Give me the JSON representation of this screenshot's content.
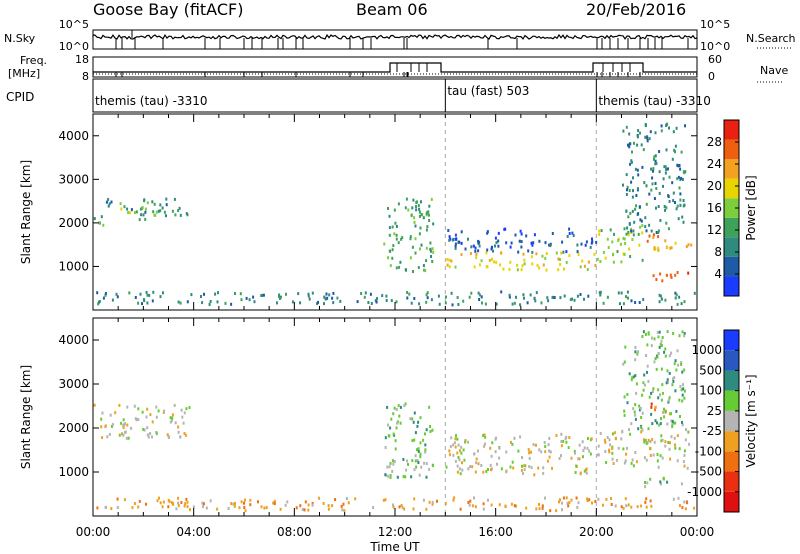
{
  "header": {
    "station": "Goose Bay (fitACF)",
    "beam": "Beam 06",
    "date": "20/Feb/2016"
  },
  "noise_panel": {
    "left_label": "N.Sky",
    "right_label": "N.Search",
    "left_ticks": [
      "10^5",
      "10^0"
    ],
    "right_ticks": [
      "10^5",
      "10^0"
    ]
  },
  "freq_panel": {
    "left_label_1": "Freq.",
    "left_label_2": "[MHz]",
    "right_label": "Nave",
    "left_ticks": [
      "18",
      "8"
    ],
    "right_ticks": [
      "60",
      "0"
    ]
  },
  "cpid_panel": {
    "label": "CPID",
    "segments": [
      {
        "text": "themis (tau) -3310",
        "start_h": 0,
        "end_h": 14
      },
      {
        "text": "tau (fast) 503",
        "start_h": 14,
        "end_h": 20
      },
      {
        "text": "themis (tau) -3310",
        "start_h": 20,
        "end_h": 24
      }
    ]
  },
  "chart_data": [
    {
      "type": "heatmap",
      "name": "power",
      "xlabel": "",
      "ylabel": "Slant Range [km]",
      "xlim": [
        0,
        24
      ],
      "ylim": [
        0,
        4500
      ],
      "yticks": [
        1000,
        2000,
        3000,
        4000
      ],
      "colorbar_label": "Power [dB]",
      "colorbar_ticks": [
        "4",
        "8",
        "12",
        "16",
        "20",
        "24",
        "28"
      ],
      "colors": [
        "#1a3cff",
        "#1f5aa6",
        "#2f8a80",
        "#3fa25a",
        "#7ccf3a",
        "#e8d400",
        "#f4a020",
        "#ee6010",
        "#ea2010"
      ],
      "scatter_regions": [
        {
          "t0": 0.0,
          "t1": 0.5,
          "r0": 1800,
          "r1": 2200,
          "level": 3
        },
        {
          "t0": 0.5,
          "t1": 3.8,
          "r0": 2200,
          "r1": 2600,
          "level": 2
        },
        {
          "t0": 1.0,
          "t1": 2.5,
          "r0": 2100,
          "r1": 2500,
          "level": 4
        },
        {
          "t0": 11.5,
          "t1": 13.5,
          "r0": 900,
          "r1": 2600,
          "level": 3
        },
        {
          "t0": 14.0,
          "t1": 20.0,
          "r0": 950,
          "r1": 1350,
          "level": 5
        },
        {
          "t0": 14.0,
          "t1": 20.0,
          "r0": 1350,
          "r1": 1900,
          "level": 1
        },
        {
          "t0": 20.0,
          "t1": 21.8,
          "r0": 1100,
          "r1": 2000,
          "level": 4
        },
        {
          "t0": 21.8,
          "t1": 23.8,
          "r0": 700,
          "r1": 900,
          "level": 7
        },
        {
          "t0": 21.8,
          "t1": 23.8,
          "r0": 1400,
          "r1": 1800,
          "level": 6
        },
        {
          "t0": 21.0,
          "t1": 23.5,
          "r0": 1800,
          "r1": 4300,
          "level": 2
        },
        {
          "t0": 0.0,
          "t1": 24.0,
          "r0": 150,
          "r1": 450,
          "level": 2
        }
      ]
    },
    {
      "type": "heatmap",
      "name": "velocity",
      "xlabel": "Time UT",
      "ylabel": "Slant Range [km]",
      "xlim": [
        0,
        24
      ],
      "ylim": [
        0,
        4500
      ],
      "xticks": [
        "00:00",
        "04:00",
        "08:00",
        "12:00",
        "16:00",
        "20:00",
        "00:00"
      ],
      "yticks": [
        1000,
        2000,
        3000,
        4000
      ],
      "colorbar_label": "Velocity [m s⁻¹]",
      "colorbar_ticks": [
        "1000",
        "500",
        "100",
        "25",
        "-25",
        "-100",
        "-500",
        "-1000"
      ],
      "colors": [
        "#1a3cff",
        "#2a58c0",
        "#2f8a80",
        "#66cc33",
        "#b4b4b4",
        "#f0a020",
        "#ee7010",
        "#ea3010",
        "#e01010"
      ],
      "scatter_regions": [
        {
          "t0": 0.0,
          "t1": 3.8,
          "r0": 1800,
          "r1": 2600,
          "level": 4
        },
        {
          "t0": 11.5,
          "t1": 13.5,
          "r0": 900,
          "r1": 2600,
          "level": 3
        },
        {
          "t0": 14.0,
          "t1": 20.0,
          "r0": 950,
          "r1": 1900,
          "level": 4
        },
        {
          "t0": 20.0,
          "t1": 23.8,
          "r0": 1100,
          "r1": 2000,
          "level": 4
        },
        {
          "t0": 22.0,
          "t1": 23.0,
          "r0": 2300,
          "r1": 2600,
          "level": 6
        },
        {
          "t0": 21.8,
          "t1": 23.8,
          "r0": 700,
          "r1": 900,
          "level": 3
        },
        {
          "t0": 21.0,
          "t1": 23.5,
          "r0": 2000,
          "r1": 4300,
          "level": 3
        },
        {
          "t0": 0.0,
          "t1": 24.0,
          "r0": 150,
          "r1": 450,
          "level": 5
        }
      ]
    }
  ]
}
